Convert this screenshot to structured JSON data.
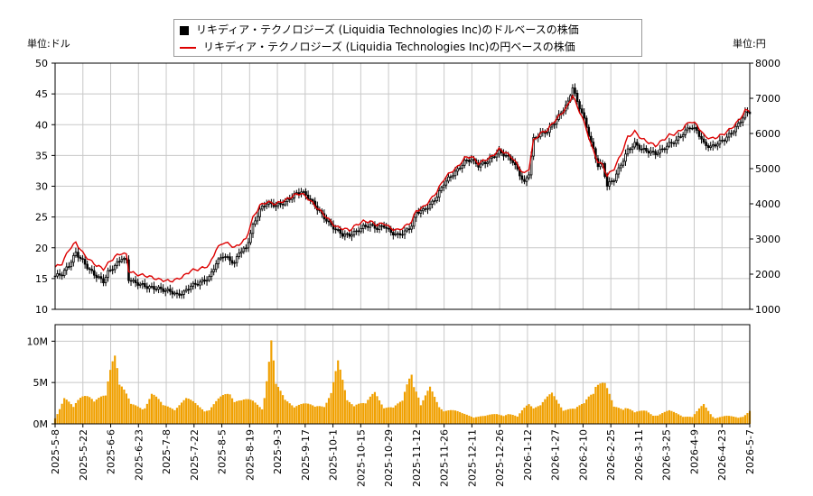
{
  "legend": {
    "usd_label": "リキディア・テクノロジーズ (Liquidia Technologies Inc)のドルベースの株価",
    "jpy_label": "リキディア・テクノロジーズ (Liquidia Technologies Inc)の円ベースの株価"
  },
  "units": {
    "left": "単位:ドル",
    "right": "単位:円"
  },
  "colors": {
    "usd": "#000000",
    "jpy": "#dd0000",
    "volume": "#f0a000",
    "grid": "#c8c8c8"
  },
  "chart_data": {
    "type": "line",
    "x_ticks": [
      "2025-5-8",
      "2025-5-22",
      "2025-6-6",
      "2025-6-23",
      "2025-7-8",
      "2025-7-22",
      "2025-8-5",
      "2025-8-19",
      "2025-9-3",
      "2025-9-17",
      "2025-10-1",
      "2025-10-15",
      "2025-10-29",
      "2025-11-12",
      "2025-11-26",
      "2025-12-11",
      "2025-12-26",
      "2026-1-12",
      "2026-1-27",
      "2026-2-10",
      "2026-2-25",
      "2026-3-11",
      "2026-3-25",
      "2026-4-9",
      "2026-4-23",
      "2026-5-7"
    ],
    "y_left": {
      "label": "単位:ドル",
      "lim": [
        10,
        50
      ],
      "ticks": [
        10,
        15,
        20,
        25,
        30,
        35,
        40,
        45,
        50
      ]
    },
    "y_right": {
      "label": "単位:円",
      "lim": [
        1000,
        8000
      ],
      "ticks": [
        1000,
        2000,
        3000,
        4000,
        5000,
        6000,
        7000,
        8000
      ]
    },
    "volume_axis": {
      "lim": [
        0,
        12000000
      ],
      "ticks": [
        0,
        5000000,
        10000000
      ],
      "tick_labels": [
        "0M",
        "5M",
        "10M"
      ]
    },
    "usd_points": [
      [
        0,
        15.4
      ],
      [
        3,
        15.6
      ],
      [
        6,
        17.0
      ],
      [
        9,
        19.2
      ],
      [
        12,
        18.0
      ],
      [
        15,
        16.5
      ],
      [
        18,
        15.3
      ],
      [
        21,
        14.4
      ],
      [
        23,
        15.9
      ],
      [
        26,
        17.1
      ],
      [
        29,
        18.5
      ],
      [
        31,
        18.0
      ],
      [
        32,
        15.0
      ],
      [
        35,
        14.2
      ],
      [
        40,
        13.5
      ],
      [
        45,
        13.5
      ],
      [
        50,
        13.0
      ],
      [
        53,
        12.2
      ],
      [
        56,
        12.6
      ],
      [
        59,
        13.8
      ],
      [
        63,
        14.5
      ],
      [
        67,
        15.2
      ],
      [
        70,
        17.4
      ],
      [
        73,
        18.6
      ],
      [
        76,
        18.0
      ],
      [
        78,
        17.5
      ],
      [
        80,
        19.5
      ],
      [
        83,
        20.0
      ],
      [
        86,
        23.5
      ],
      [
        89,
        26.0
      ],
      [
        92,
        27.2
      ],
      [
        96,
        27.0
      ],
      [
        100,
        27.5
      ],
      [
        104,
        28.5
      ],
      [
        107,
        29.0
      ],
      [
        110,
        28.2
      ],
      [
        113,
        27.0
      ],
      [
        116,
        25.5
      ],
      [
        119,
        24.0
      ],
      [
        122,
        22.8
      ],
      [
        125,
        22.0
      ],
      [
        128,
        22.1
      ],
      [
        131,
        22.8
      ],
      [
        134,
        23.5
      ],
      [
        137,
        23.6
      ],
      [
        140,
        23.0
      ],
      [
        143,
        23.5
      ],
      [
        146,
        22.6
      ],
      [
        149,
        22.2
      ],
      [
        152,
        22.6
      ],
      [
        155,
        23.5
      ],
      [
        157,
        25.6
      ],
      [
        160,
        26.0
      ],
      [
        163,
        27.0
      ],
      [
        166,
        28.5
      ],
      [
        169,
        30.5
      ],
      [
        172,
        31.5
      ],
      [
        175,
        32.5
      ],
      [
        178,
        34.0
      ],
      [
        181,
        34.5
      ],
      [
        184,
        33.5
      ],
      [
        187,
        33.8
      ],
      [
        190,
        34.5
      ],
      [
        193,
        35.5
      ],
      [
        196,
        35.0
      ],
      [
        199,
        34.2
      ],
      [
        202,
        32.0
      ],
      [
        204,
        30.5
      ],
      [
        206,
        32.0
      ],
      [
        208,
        37.5
      ],
      [
        211,
        38.5
      ],
      [
        214,
        39.0
      ],
      [
        217,
        40.5
      ],
      [
        220,
        42.0
      ],
      [
        223,
        43.5
      ],
      [
        225,
        46.0
      ],
      [
        227,
        43.5
      ],
      [
        229,
        42.0
      ],
      [
        232,
        38.5
      ],
      [
        234,
        36.0
      ],
      [
        236,
        33.5
      ],
      [
        238,
        33.5
      ],
      [
        240,
        30.0
      ],
      [
        243,
        31.0
      ],
      [
        246,
        33.5
      ],
      [
        249,
        36.0
      ],
      [
        252,
        37.0
      ],
      [
        255,
        36.0
      ],
      [
        258,
        35.5
      ],
      [
        261,
        35.2
      ],
      [
        264,
        36.0
      ],
      [
        267,
        37.0
      ],
      [
        270,
        37.5
      ],
      [
        273,
        38.5
      ],
      [
        276,
        39.5
      ],
      [
        279,
        39.0
      ],
      [
        282,
        37.0
      ],
      [
        285,
        36.5
      ],
      [
        288,
        37.0
      ],
      [
        291,
        37.5
      ],
      [
        294,
        38.5
      ],
      [
        297,
        40.0
      ],
      [
        300,
        42.0
      ],
      [
        302,
        42.2
      ]
    ],
    "jpy_points": [
      [
        0,
        2200
      ],
      [
        3,
        2300
      ],
      [
        6,
        2700
      ],
      [
        9,
        2900
      ],
      [
        12,
        2600
      ],
      [
        15,
        2400
      ],
      [
        18,
        2250
      ],
      [
        21,
        2150
      ],
      [
        23,
        2300
      ],
      [
        26,
        2500
      ],
      [
        29,
        2600
      ],
      [
        31,
        2550
      ],
      [
        32,
        2100
      ],
      [
        35,
        2000
      ],
      [
        40,
        1950
      ],
      [
        45,
        1850
      ],
      [
        50,
        1800
      ],
      [
        53,
        1850
      ],
      [
        56,
        1950
      ],
      [
        59,
        2100
      ],
      [
        63,
        2150
      ],
      [
        67,
        2250
      ],
      [
        70,
        2700
      ],
      [
        73,
        2900
      ],
      [
        76,
        2850
      ],
      [
        78,
        2750
      ],
      [
        80,
        2850
      ],
      [
        83,
        3000
      ],
      [
        86,
        3600
      ],
      [
        89,
        3950
      ],
      [
        92,
        4050
      ],
      [
        96,
        4000
      ],
      [
        100,
        4100
      ],
      [
        104,
        4250
      ],
      [
        107,
        4300
      ],
      [
        110,
        4150
      ],
      [
        113,
        3950
      ],
      [
        116,
        3750
      ],
      [
        119,
        3550
      ],
      [
        122,
        3350
      ],
      [
        125,
        3300
      ],
      [
        128,
        3250
      ],
      [
        131,
        3400
      ],
      [
        134,
        3500
      ],
      [
        137,
        3500
      ],
      [
        140,
        3400
      ],
      [
        143,
        3450
      ],
      [
        146,
        3300
      ],
      [
        149,
        3250
      ],
      [
        152,
        3350
      ],
      [
        155,
        3500
      ],
      [
        157,
        3800
      ],
      [
        160,
        3900
      ],
      [
        163,
        4100
      ],
      [
        166,
        4350
      ],
      [
        169,
        4700
      ],
      [
        172,
        4900
      ],
      [
        175,
        5050
      ],
      [
        178,
        5300
      ],
      [
        181,
        5350
      ],
      [
        184,
        5150
      ],
      [
        187,
        5250
      ],
      [
        190,
        5350
      ],
      [
        193,
        5550
      ],
      [
        196,
        5450
      ],
      [
        199,
        5300
      ],
      [
        202,
        5000
      ],
      [
        204,
        4850
      ],
      [
        206,
        5000
      ],
      [
        208,
        5800
      ],
      [
        211,
        6000
      ],
      [
        214,
        6100
      ],
      [
        217,
        6350
      ],
      [
        220,
        6550
      ],
      [
        223,
        6800
      ],
      [
        225,
        7100
      ],
      [
        227,
        6750
      ],
      [
        229,
        6500
      ],
      [
        232,
        5900
      ],
      [
        234,
        5500
      ],
      [
        236,
        5200
      ],
      [
        238,
        5100
      ],
      [
        240,
        4800
      ],
      [
        243,
        5000
      ],
      [
        246,
        5400
      ],
      [
        249,
        5900
      ],
      [
        252,
        6050
      ],
      [
        255,
        5850
      ],
      [
        258,
        5750
      ],
      [
        261,
        5650
      ],
      [
        264,
        5800
      ],
      [
        267,
        5950
      ],
      [
        270,
        6000
      ],
      [
        273,
        6150
      ],
      [
        276,
        6350
      ],
      [
        279,
        6250
      ],
      [
        282,
        5950
      ],
      [
        285,
        5850
      ],
      [
        288,
        5900
      ],
      [
        291,
        6000
      ],
      [
        294,
        6150
      ],
      [
        297,
        6350
      ],
      [
        300,
        6650
      ],
      [
        302,
        6650
      ]
    ],
    "volume": [
      [
        0,
        0.9
      ],
      [
        4,
        3.0
      ],
      [
        8,
        1.9
      ],
      [
        13,
        4.5
      ],
      [
        17,
        2.6
      ],
      [
        22,
        3.3
      ],
      [
        26,
        11.0
      ],
      [
        28,
        5.2
      ],
      [
        33,
        2.2
      ],
      [
        38,
        2.1
      ],
      [
        42,
        3.7
      ],
      [
        47,
        2.1
      ],
      [
        52,
        2.2
      ],
      [
        57,
        2.9
      ],
      [
        62,
        2.3
      ],
      [
        67,
        1.8
      ],
      [
        71,
        2.8
      ],
      [
        76,
        3.9
      ],
      [
        81,
        2.9
      ],
      [
        86,
        2.6
      ],
      [
        90,
        2.1
      ],
      [
        94,
        10.3
      ],
      [
        96,
        4.5
      ],
      [
        100,
        2.8
      ],
      [
        105,
        2.6
      ],
      [
        109,
        2.3
      ],
      [
        113,
        2.0
      ],
      [
        117,
        2.7
      ],
      [
        120,
        3.8
      ],
      [
        123,
        7.0
      ],
      [
        127,
        2.9
      ],
      [
        131,
        2.8
      ],
      [
        135,
        2.3
      ],
      [
        139,
        3.7
      ],
      [
        143,
        2.5
      ],
      [
        147,
        1.9
      ],
      [
        151,
        2.6
      ],
      [
        155,
        7.1
      ],
      [
        159,
        2.3
      ],
      [
        163,
        4.1
      ],
      [
        167,
        2.2
      ],
      [
        172,
        1.7
      ],
      [
        177,
        1.2
      ],
      [
        182,
        1.0
      ],
      [
        187,
        0.9
      ],
      [
        192,
        1.2
      ],
      [
        197,
        1.3
      ],
      [
        201,
        0.8
      ],
      [
        206,
        2.6
      ],
      [
        211,
        2.3
      ],
      [
        216,
        3.5
      ],
      [
        221,
        2.1
      ],
      [
        226,
        1.7
      ],
      [
        230,
        2.4
      ],
      [
        235,
        5.4
      ],
      [
        239,
        4.6
      ],
      [
        243,
        2.0
      ],
      [
        248,
        2.3
      ],
      [
        252,
        1.3
      ],
      [
        257,
        1.6
      ],
      [
        262,
        1.1
      ],
      [
        267,
        1.5
      ],
      [
        272,
        1.2
      ],
      [
        277,
        0.8
      ],
      [
        282,
        2.3
      ],
      [
        287,
        0.8
      ],
      [
        292,
        0.9
      ],
      [
        297,
        0.8
      ],
      [
        302,
        1.6
      ]
    ],
    "n_days": 303
  }
}
